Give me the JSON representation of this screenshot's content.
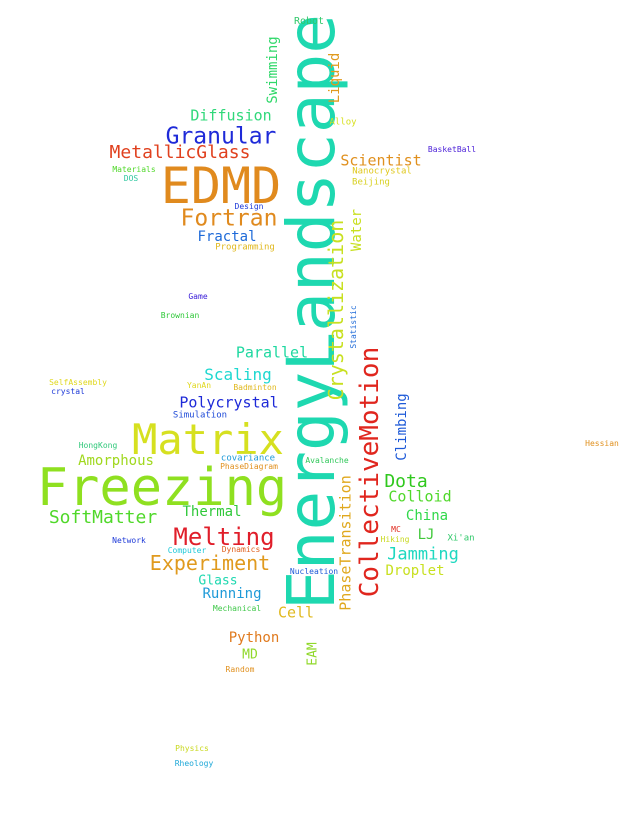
{
  "words": [
    {
      "text": "EnergyLandscape",
      "color": "#1ed8b0"
    },
    {
      "text": "Freezing",
      "color": "#8fe020"
    },
    {
      "text": "EDMD",
      "color": "#e08a1e"
    },
    {
      "text": "Matrix",
      "color": "#d6e020"
    },
    {
      "text": "CollectiveMotion",
      "color": "#e0261e"
    },
    {
      "text": "Crystallization",
      "color": "#c8e020"
    },
    {
      "text": "Granular",
      "color": "#1e2ad8"
    },
    {
      "text": "Melting",
      "color": "#e01e2a"
    },
    {
      "text": "Fortran",
      "color": "#e08a1e"
    },
    {
      "text": "MetallicGlass",
      "color": "#e0401e"
    },
    {
      "text": "SoftMatter",
      "color": "#50d82a"
    },
    {
      "text": "Experiment",
      "color": "#e09a1e"
    },
    {
      "text": "PhaseTransition",
      "color": "#e0a81e"
    },
    {
      "text": "Dota",
      "color": "#30c81e"
    },
    {
      "text": "Jamming",
      "color": "#1ed8c0"
    },
    {
      "text": "Scaling",
      "color": "#1ed8d0"
    },
    {
      "text": "Polycrystal",
      "color": "#1e2ad8"
    },
    {
      "text": "Diffusion",
      "color": "#30d87a"
    },
    {
      "text": "Scientist",
      "color": "#e0901e"
    },
    {
      "text": "Parallel",
      "color": "#1ed8a0"
    },
    {
      "text": "Amorphous",
      "color": "#a0d81e"
    },
    {
      "text": "Water",
      "color": "#c8e020"
    },
    {
      "text": "Liquid",
      "color": "#e09a1e"
    },
    {
      "text": "Swimming",
      "color": "#30d86a"
    },
    {
      "text": "Climbing",
      "color": "#1e5ad8"
    },
    {
      "text": "Colloid",
      "color": "#50d82a"
    },
    {
      "text": "China",
      "color": "#30d84a"
    },
    {
      "text": "Droplet",
      "color": "#c8e020"
    },
    {
      "text": "Thermal",
      "color": "#30c83a"
    },
    {
      "text": "Fractal",
      "color": "#1e6ad8"
    },
    {
      "text": "Running",
      "color": "#1e9ad8"
    },
    {
      "text": "Glass",
      "color": "#1ed8b0"
    },
    {
      "text": "Cell",
      "color": "#e0b81e"
    },
    {
      "text": "Python",
      "color": "#e07a1e"
    },
    {
      "text": "MD",
      "color": "#90d82a"
    },
    {
      "text": "EAM",
      "color": "#90d82a"
    },
    {
      "text": "LJ",
      "color": "#40c83a"
    },
    {
      "text": "Robot",
      "color": "#30c86a"
    },
    {
      "text": "Alloy",
      "color": "#d8e020"
    },
    {
      "text": "BasketBall",
      "color": "#4a1ed8"
    },
    {
      "text": "Nanocrystal",
      "color": "#e0c81e"
    },
    {
      "text": "Beijing",
      "color": "#d8d020"
    },
    {
      "text": "Materials",
      "color": "#50d82a"
    },
    {
      "text": "DOS",
      "color": "#30c8a0"
    },
    {
      "text": "Design",
      "color": "#1e3ad8"
    },
    {
      "text": "Programming",
      "color": "#e0b81e"
    },
    {
      "text": "Game",
      "color": "#3a1ed8"
    },
    {
      "text": "Brownian",
      "color": "#30c83a"
    },
    {
      "text": "Statistic",
      "color": "#1e6ad8"
    },
    {
      "text": "SelfAssembly",
      "color": "#e0d81e"
    },
    {
      "text": "crystal",
      "color": "#1e3ad8"
    },
    {
      "text": "YanAn",
      "color": "#e0d81e"
    },
    {
      "text": "Badminton",
      "color": "#e0b81e"
    },
    {
      "text": "Simulation",
      "color": "#1e4ad8"
    },
    {
      "text": "HongKong",
      "color": "#30c87a"
    },
    {
      "text": "covariance",
      "color": "#1e9ad8"
    },
    {
      "text": "PhaseDiagram",
      "color": "#e0901e"
    },
    {
      "text": "Avalanche",
      "color": "#30c85a"
    },
    {
      "text": "Hessian",
      "color": "#e0901e"
    },
    {
      "text": "Network",
      "color": "#1e3ad8"
    },
    {
      "text": "Computer",
      "color": "#1ec8d8"
    },
    {
      "text": "Dynamics",
      "color": "#e0601e"
    },
    {
      "text": "MC",
      "color": "#e02a1e"
    },
    {
      "text": "Hiking",
      "color": "#c8d81e"
    },
    {
      "text": "Xi'an",
      "color": "#30c86a"
    },
    {
      "text": "Nucleation",
      "color": "#1e5ad8"
    },
    {
      "text": "Mechanical",
      "color": "#40c84a"
    },
    {
      "text": "Random",
      "color": "#e0901e"
    },
    {
      "text": "Physics",
      "color": "#c8d81e"
    },
    {
      "text": "Rheology",
      "color": "#1ea8d8"
    }
  ]
}
